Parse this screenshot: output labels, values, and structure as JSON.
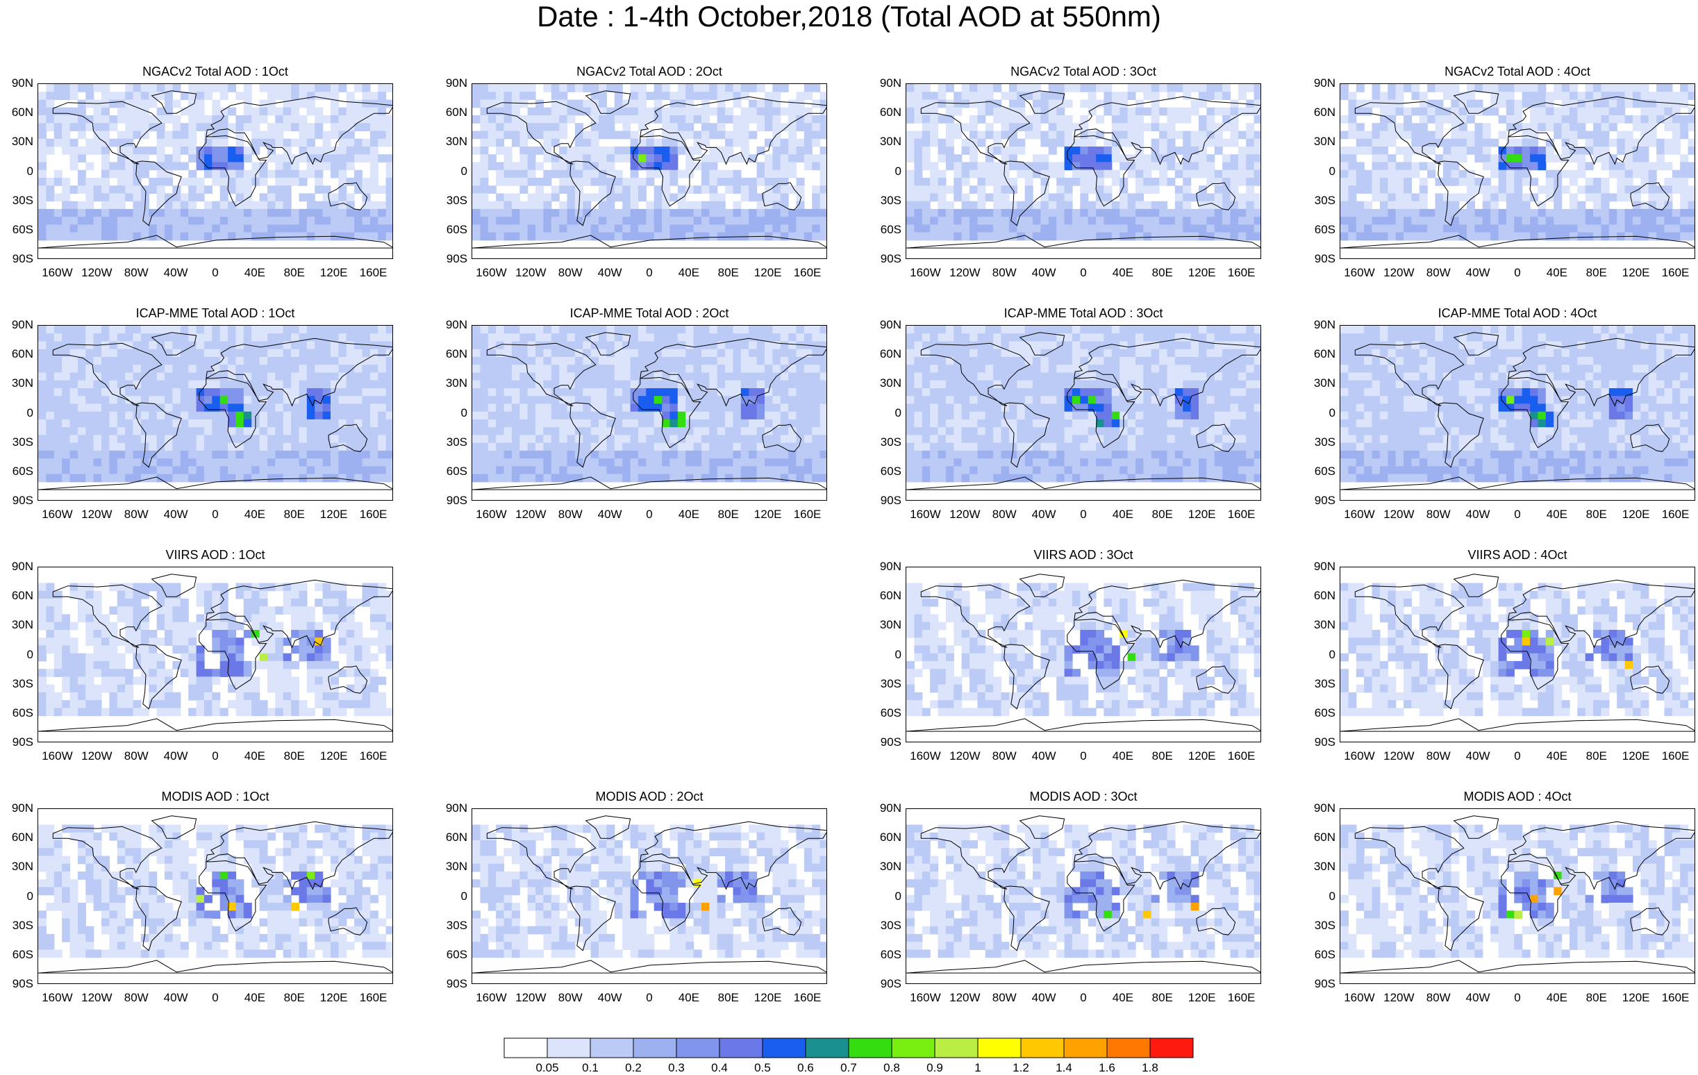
{
  "title": "Date : 1-4th October,2018 (Total AOD at 550nm)",
  "y_ticks": [
    "90N",
    "60N",
    "30N",
    "0",
    "30S",
    "60S",
    "90S"
  ],
  "x_ticks": [
    "160W",
    "120W",
    "80W",
    "40W",
    "0",
    "40E",
    "80E",
    "120E",
    "160E"
  ],
  "x_tick_values": [
    -160,
    -120,
    -80,
    -40,
    0,
    40,
    80,
    120,
    160
  ],
  "y_tick_values": [
    90,
    60,
    30,
    0,
    -30,
    -60,
    -90
  ],
  "rows": [
    {
      "product": "NGACv2",
      "panels": [
        {
          "title": "NGACv2 Total AOD : 1Oct",
          "present": true
        },
        {
          "title": "NGACv2 Total AOD : 2Oct",
          "present": true
        },
        {
          "title": "NGACv2 Total AOD : 3Oct",
          "present": true
        },
        {
          "title": "NGACv2 Total AOD : 4Oct",
          "present": true
        }
      ]
    },
    {
      "product": "ICAP-MME",
      "panels": [
        {
          "title": "ICAP-MME Total AOD : 1Oct",
          "present": true
        },
        {
          "title": "ICAP-MME Total AOD : 2Oct",
          "present": true
        },
        {
          "title": "ICAP-MME Total AOD : 3Oct",
          "present": true
        },
        {
          "title": "ICAP-MME Total AOD : 4Oct",
          "present": true
        }
      ]
    },
    {
      "product": "VIIRS",
      "panels": [
        {
          "title": "VIIRS AOD : 1Oct",
          "present": true
        },
        {
          "title": "",
          "present": false
        },
        {
          "title": "VIIRS AOD : 3Oct",
          "present": true
        },
        {
          "title": "VIIRS AOD : 4Oct",
          "present": true
        }
      ]
    },
    {
      "product": "MODIS",
      "panels": [
        {
          "title": "MODIS AOD : 1Oct",
          "present": true
        },
        {
          "title": "MODIS AOD : 2Oct",
          "present": true
        },
        {
          "title": "MODIS AOD : 3Oct",
          "present": true
        },
        {
          "title": "MODIS AOD : 4Oct",
          "present": true
        }
      ]
    }
  ],
  "colorbar": {
    "labels": [
      "0.05",
      "0.1",
      "0.2",
      "0.3",
      "0.4",
      "0.5",
      "0.6",
      "0.7",
      "0.8",
      "0.9",
      "1",
      "1.2",
      "1.4",
      "1.6",
      "1.8"
    ],
    "colors": [
      "#ffffff",
      "#dbe4fb",
      "#bccbf6",
      "#9db1f1",
      "#8195ec",
      "#6a78e8",
      "#1a5ef0",
      "#1a9090",
      "#33dd10",
      "#77ee10",
      "#bbee44",
      "#ffff00",
      "#ffc800",
      "#ffa200",
      "#ff7800",
      "#ff1a10"
    ]
  }
}
